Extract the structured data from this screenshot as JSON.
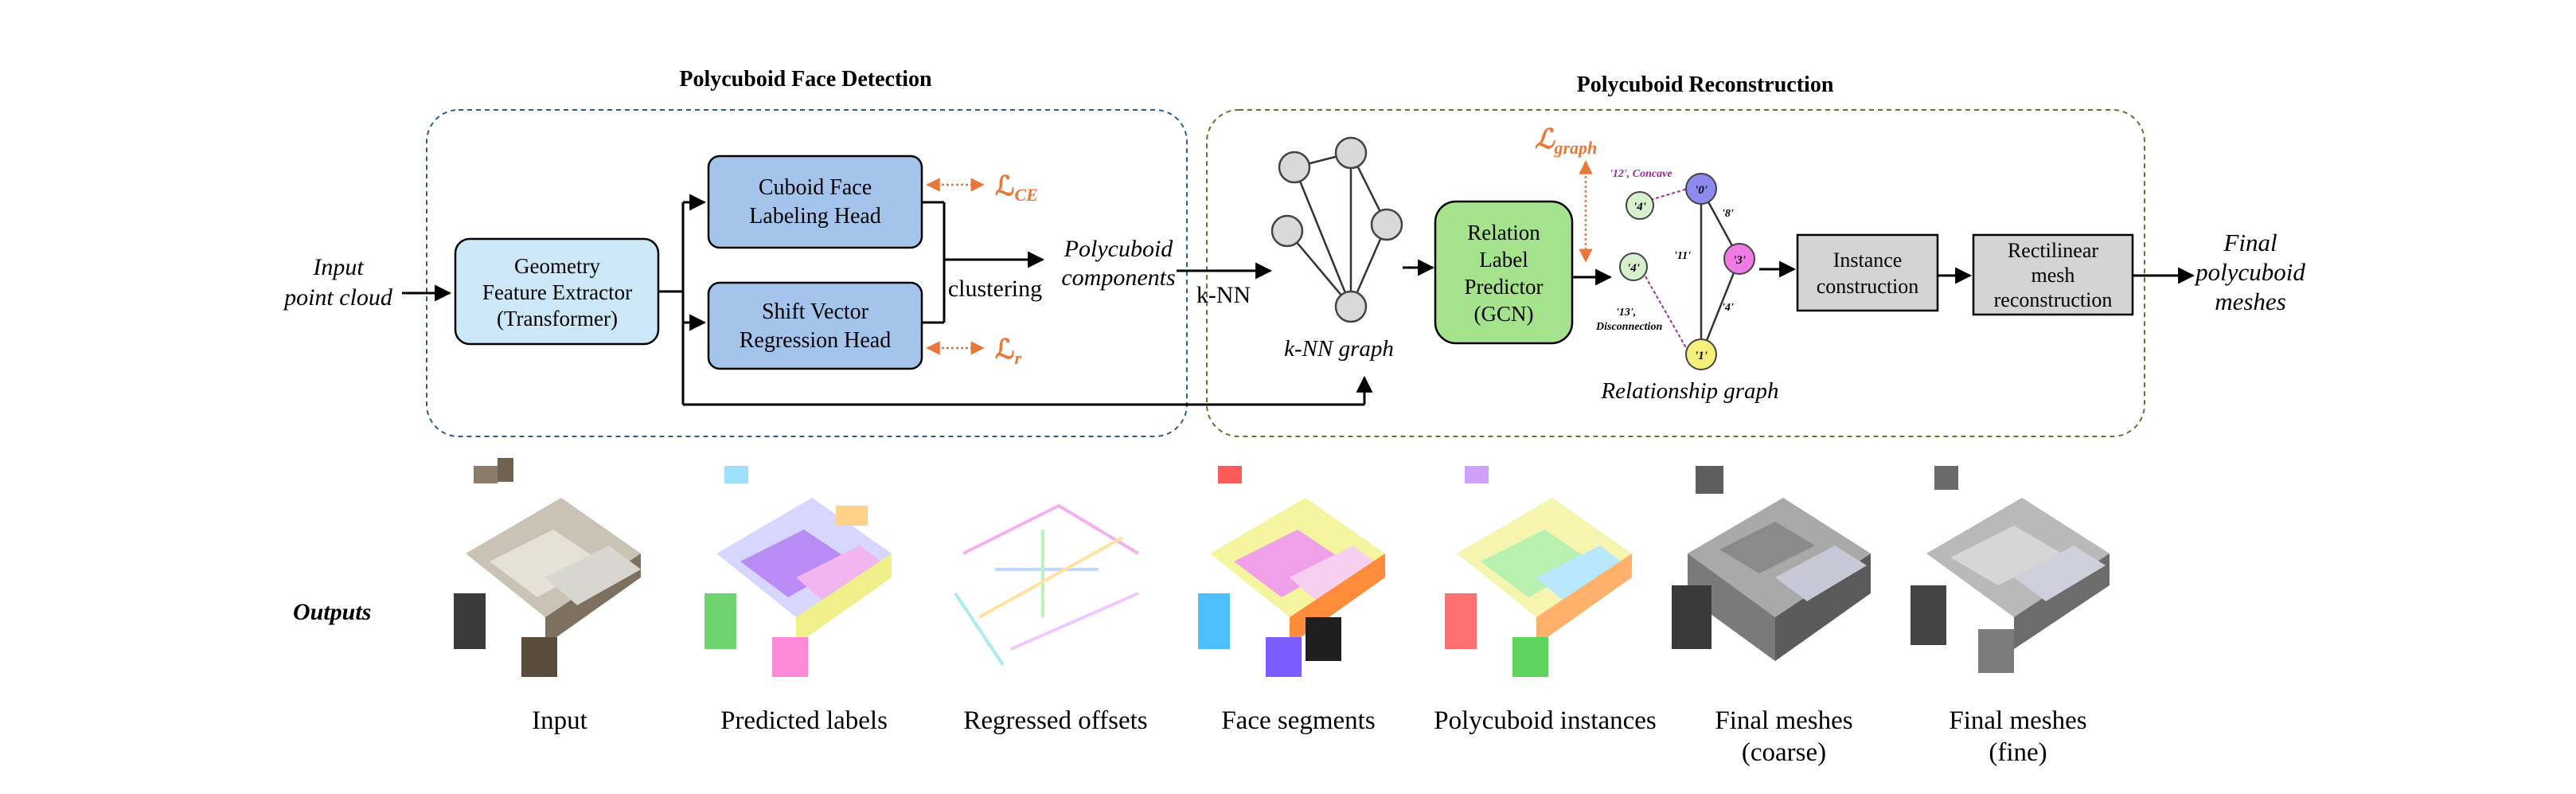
{
  "sections": {
    "detection_title": "Polycuboid Face Detection",
    "reconstruction_title": "Polycuboid Reconstruction"
  },
  "labels": {
    "input": [
      "Input",
      "point cloud"
    ],
    "extractor": [
      "Geometry",
      "Feature Extractor",
      "(Transformer)"
    ],
    "labeling_head": [
      "Cuboid Face",
      "Labeling Head"
    ],
    "shift_head": [
      "Shift Vector",
      "Regression Head"
    ],
    "clustering": "clustering",
    "components": [
      "Polycuboid",
      "components"
    ],
    "knn": "k-NN",
    "knn_graph": "k-NN graph",
    "predictor": [
      "Relation",
      "Label",
      "Predictor",
      "(GCN)"
    ],
    "relationship_graph": "Relationship graph",
    "instance": [
      "Instance",
      "construction"
    ],
    "rectilinear": [
      "Rectilinear",
      "mesh",
      "reconstruction"
    ],
    "final": [
      "Final",
      "polycuboid",
      "meshes"
    ],
    "outputs": "Outputs"
  },
  "losses": {
    "ce": {
      "symbol": "ℒ",
      "sub": "CE"
    },
    "r": {
      "symbol": "ℒ",
      "sub": "r"
    },
    "graph": {
      "symbol": "ℒ",
      "sub": "graph"
    }
  },
  "relationship_graph": {
    "nodes": [
      "'4'",
      "'4'",
      "'0'",
      "'3'",
      "'1'"
    ],
    "edge_labels": [
      "'12', Concave",
      "'8'",
      "'11'",
      "'4'",
      "'13',",
      "Disconnection"
    ]
  },
  "colors": {
    "detection_border": "#2e5b8a",
    "reconstruction_border": "#5b7a2a",
    "extractor_fill": "#cce7f7",
    "head_fill": "#a4c4ec",
    "predictor_fill": "#a5e28c",
    "gray_box": "#d4d4d4",
    "loss": "#e8773a",
    "concave": "#9b2a9b"
  },
  "outputs": [
    {
      "caption": [
        "Input"
      ],
      "icon": "point-cloud-input-image"
    },
    {
      "caption": [
        "Predicted labels"
      ],
      "icon": "predicted-labels-image"
    },
    {
      "caption": [
        "Regressed offsets"
      ],
      "icon": "regressed-offsets-image"
    },
    {
      "caption": [
        "Face segments"
      ],
      "icon": "face-segments-image"
    },
    {
      "caption": [
        "Polycuboid instances"
      ],
      "icon": "polycuboid-instances-image"
    },
    {
      "caption": [
        "Final meshes",
        "(coarse)"
      ],
      "icon": "coarse-mesh-image"
    },
    {
      "caption": [
        "Final meshes",
        "(fine)"
      ],
      "icon": "fine-mesh-image"
    }
  ]
}
